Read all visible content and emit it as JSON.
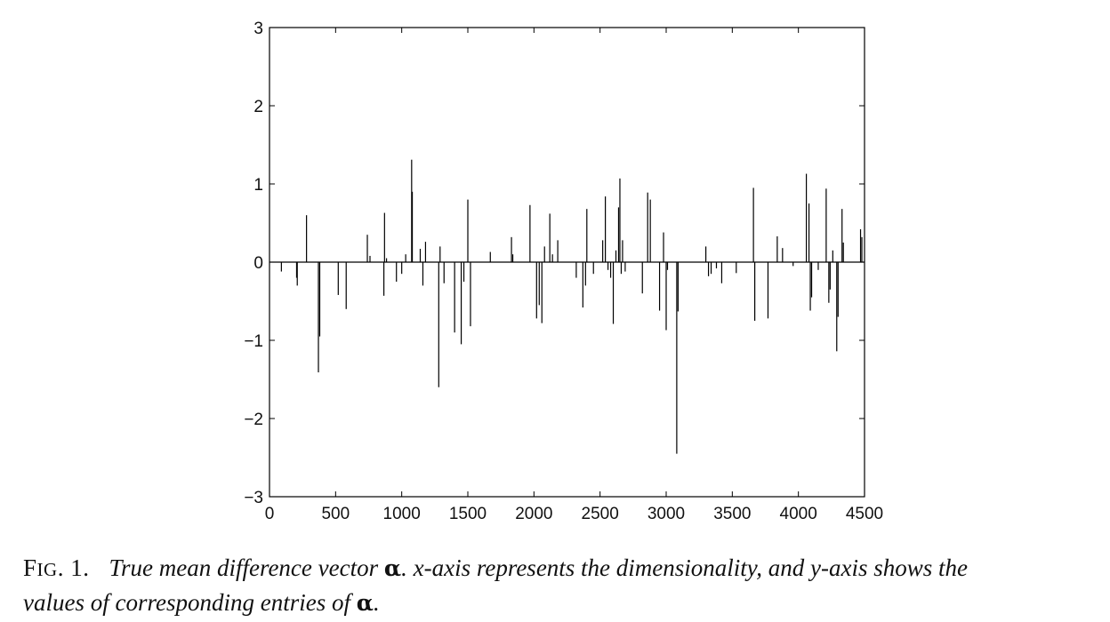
{
  "chart_data": {
    "type": "bar",
    "title": "",
    "xlabel": "",
    "ylabel": "",
    "xlim": [
      0,
      4500
    ],
    "ylim": [
      -3,
      3
    ],
    "x_ticks": [
      0,
      500,
      1000,
      1500,
      2000,
      2500,
      3000,
      3500,
      4000,
      4500
    ],
    "y_ticks": [
      3,
      2,
      1,
      0,
      -1,
      -2,
      -3
    ],
    "y_tick_labels": [
      "3",
      "2",
      "1",
      "0",
      "−1",
      "−2",
      "−3"
    ],
    "grid": false,
    "legend": "none",
    "line_color": "#000000",
    "series": [
      {
        "x": [
          90,
          205,
          210,
          280,
          370,
          380,
          520,
          580,
          740,
          760,
          865,
          870,
          885,
          960,
          1000,
          1030,
          1075,
          1080,
          1140,
          1160,
          1180,
          1280,
          1290,
          1320,
          1400,
          1450,
          1470,
          1500,
          1520,
          1670,
          1830,
          1840,
          1970,
          2020,
          2040,
          2060,
          2080,
          2120,
          2140,
          2180,
          2320,
          2370,
          2390,
          2400,
          2450,
          2520,
          2540,
          2560,
          2580,
          2600,
          2620,
          2640,
          2650,
          2660,
          2670,
          2690,
          2820,
          2860,
          2880,
          2950,
          2980,
          3000,
          3010,
          3080,
          3090,
          3300,
          3320,
          3340,
          3380,
          3420,
          3530,
          3660,
          3670,
          3770,
          3840,
          3880,
          3960,
          4060,
          4080,
          4090,
          4100,
          4150,
          4210,
          4230,
          4240,
          4260,
          4290,
          4300,
          4330,
          4340,
          4470,
          4480
        ],
        "values": [
          -0.12,
          -0.2,
          -0.3,
          0.6,
          -1.41,
          -0.95,
          -0.42,
          -0.6,
          0.35,
          0.08,
          -0.43,
          0.63,
          0.05,
          -0.25,
          -0.15,
          0.1,
          1.31,
          0.9,
          0.17,
          -0.3,
          0.26,
          -1.6,
          0.2,
          -0.27,
          -0.9,
          -1.05,
          -0.25,
          0.8,
          -0.82,
          0.13,
          0.32,
          0.1,
          0.73,
          -0.72,
          -0.55,
          -0.78,
          0.2,
          0.62,
          0.1,
          0.28,
          -0.2,
          -0.58,
          -0.3,
          0.68,
          -0.15,
          0.28,
          0.84,
          -0.1,
          -0.2,
          -0.79,
          0.15,
          0.7,
          1.07,
          -0.15,
          0.28,
          -0.12,
          -0.4,
          0.89,
          0.8,
          -0.62,
          0.38,
          -0.87,
          -0.1,
          -2.45,
          -0.63,
          0.2,
          -0.18,
          -0.15,
          -0.08,
          -0.27,
          -0.14,
          0.95,
          -0.75,
          -0.72,
          0.33,
          0.18,
          -0.05,
          1.13,
          0.75,
          -0.62,
          -0.45,
          -0.1,
          0.94,
          -0.52,
          -0.35,
          0.15,
          -1.14,
          -0.7,
          0.68,
          0.25,
          0.42,
          0.32
        ]
      }
    ]
  },
  "caption": {
    "fig_prefix": "F",
    "fig_smallcaps": "IG",
    "fig_number": ". 1.",
    "part1": "True mean difference vector ",
    "alpha": "α",
    "part2": ". x-axis represents the dimensionality, and y-axis shows the",
    "part3": "values of corresponding entries of ",
    "alpha2": "α",
    "part4": "."
  }
}
